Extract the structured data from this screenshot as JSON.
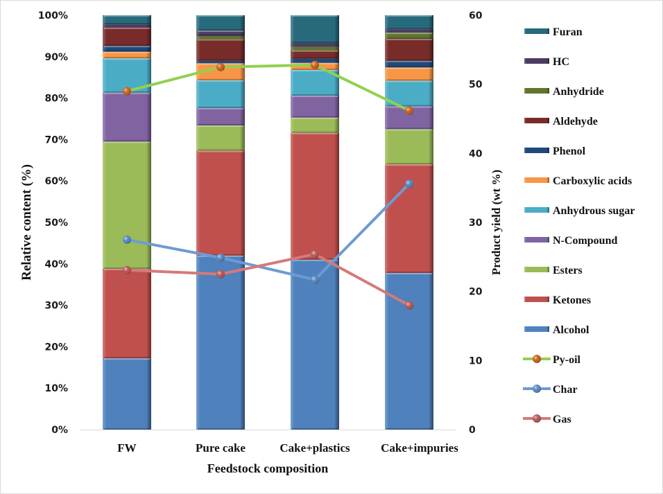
{
  "chart_data": {
    "type": "bar",
    "stacked": true,
    "percent_stacked": true,
    "title": "",
    "xlabel": "Feedstock composition",
    "ylabel": "Relative content (%)",
    "y2label": "Product yield (wt %)",
    "ylim": [
      0,
      100
    ],
    "y2lim": [
      0,
      60
    ],
    "yticks": [
      "0%",
      "10%",
      "20%",
      "30%",
      "40%",
      "50%",
      "60%",
      "70%",
      "80%",
      "90%",
      "100%"
    ],
    "y2ticks": [
      "0",
      "10",
      "20",
      "30",
      "40",
      "50",
      "60"
    ],
    "categories": [
      "FW",
      "Pure cake",
      "Cake+plastics",
      "Cake+impuries"
    ],
    "legend_position": "right",
    "series": [
      {
        "name": "Alcohol",
        "color": "#4f81bd",
        "values": [
          17.2,
          42.0,
          41.0,
          37.8
        ]
      },
      {
        "name": "Ketones",
        "color": "#c0504d",
        "values": [
          21.6,
          25.3,
          30.6,
          26.2
        ]
      },
      {
        "name": "Esters",
        "color": "#9bbb59",
        "values": [
          30.7,
          6.1,
          3.7,
          8.5
        ]
      },
      {
        "name": "N-Compound",
        "color": "#8064a2",
        "values": [
          11.8,
          4.2,
          5.3,
          5.5
        ]
      },
      {
        "name": "Anhydrous sugar",
        "color": "#4bacc6",
        "values": [
          8.3,
          6.7,
          6.2,
          6.2
        ]
      },
      {
        "name": "Carboxylic acids",
        "color": "#f79646",
        "values": [
          1.6,
          4.1,
          1.7,
          3.2
        ]
      },
      {
        "name": "Phenol",
        "color": "#1f497d",
        "values": [
          1.4,
          0.6,
          1.0,
          1.6
        ]
      },
      {
        "name": "Aldehyde",
        "color": "#772c2a",
        "values": [
          4.4,
          5.2,
          2.0,
          5.3
        ]
      },
      {
        "name": "Anhydride",
        "color": "#5f7530",
        "values": [
          0.0,
          0.8,
          0.9,
          1.5
        ]
      },
      {
        "name": "HC",
        "color": "#4d3b62",
        "values": [
          0.8,
          1.3,
          0.9,
          0.8
        ]
      },
      {
        "name": "Furan",
        "color": "#276a7c",
        "values": [
          2.2,
          3.7,
          6.7,
          3.4
        ]
      }
    ],
    "line_series": [
      {
        "name": "Py-oil",
        "axis": "right",
        "color": "#92d050",
        "marker": "#c55a11",
        "values": [
          49.0,
          52.5,
          52.8,
          46.2
        ]
      },
      {
        "name": "Char",
        "axis": "right",
        "color": "#6d9bd1",
        "marker": "#4f81bd",
        "values": [
          27.5,
          24.9,
          21.7,
          35.6
        ]
      },
      {
        "name": "Gas",
        "axis": "right",
        "color": "#d47a78",
        "marker": "#b2504e",
        "values": [
          23.1,
          22.5,
          25.4,
          18.0
        ]
      }
    ],
    "legend_order": [
      "Furan",
      "HC",
      "Anhydride",
      "Aldehyde",
      "Phenol",
      "Carboxylic acids",
      "Anhydrous sugar",
      "N-Compound",
      "Esters",
      "Ketones",
      "Alcohol",
      "Py-oil",
      "Char",
      "Gas"
    ]
  }
}
